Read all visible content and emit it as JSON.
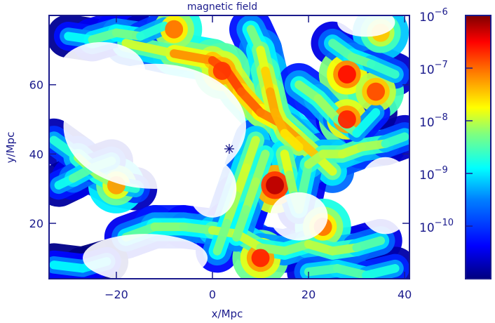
{
  "chart_data": {
    "type": "heatmap",
    "title": "magnetic field",
    "xlabel": "x/Mpc",
    "ylabel": "y/Mpc",
    "xlim": [
      -34,
      41
    ],
    "ylim": [
      4,
      80
    ],
    "x_ticks": [
      -20,
      0,
      20,
      40
    ],
    "y_ticks": [
      20,
      40,
      60
    ],
    "colorbar": {
      "scale": "log",
      "range": [
        1e-11,
        1e-06
      ],
      "tick_values": [
        1e-06,
        1e-07,
        1e-08,
        1e-09,
        1e-10
      ],
      "tick_labels": [
        {
          "base": "10",
          "exp": "−6"
        },
        {
          "base": "10",
          "exp": "−7"
        },
        {
          "base": "10",
          "exp": "−8"
        },
        {
          "base": "10",
          "exp": "−9"
        },
        {
          "base": "10",
          "exp": "−10"
        }
      ],
      "colormap": [
        "#00007f",
        "#0000ff",
        "#007fff",
        "#00ffff",
        "#7fff7f",
        "#ffff00",
        "#ff7f00",
        "#ff0000",
        "#7f0000"
      ]
    },
    "marker": {
      "symbol": "asterisk",
      "x": 3.5,
      "y": 41.5
    },
    "filaments": [
      {
        "x": [
          -18,
          -8,
          0,
          3,
          6,
          10,
          14,
          18,
          22,
          25
        ],
        "y": [
          72,
          69,
          67,
          64,
          58,
          52,
          49,
          44,
          39,
          35
        ],
        "log_b": [
          -8.6,
          -7.6,
          -7.1,
          -6.9,
          -7.0,
          -7.2,
          -7.3,
          -7.5,
          -7.7,
          -8.4
        ]
      },
      {
        "x": [
          8,
          10,
          11,
          12,
          13,
          15,
          18
        ],
        "y": [
          76,
          70,
          64,
          58,
          52,
          46,
          42
        ],
        "log_b": [
          -8.8,
          -8.2,
          -7.8,
          -7.5,
          -7.4,
          -7.6,
          -7.9
        ]
      },
      {
        "x": [
          -33,
          -28,
          -24,
          -20,
          -16
        ],
        "y": [
          44,
          39,
          34,
          31,
          30
        ],
        "log_b": [
          -9.4,
          -8.5,
          -8.2,
          -8.6,
          -9.2
        ]
      },
      {
        "x": [
          -32,
          -29,
          -25,
          -21
        ],
        "y": [
          31,
          33,
          36,
          38
        ],
        "log_b": [
          -9.3,
          -8.8,
          -8.6,
          -9.1
        ]
      },
      {
        "x": [
          -30,
          -25,
          -20,
          -15,
          -10
        ],
        "y": [
          74,
          73,
          75,
          74,
          77
        ],
        "log_b": [
          -9.3,
          -8.9,
          -8.4,
          -8.7,
          -9.2
        ]
      },
      {
        "x": [
          -18,
          -12,
          -6,
          0,
          5,
          10,
          15,
          20,
          25,
          30,
          35
        ],
        "y": [
          16,
          19,
          19,
          18,
          17,
          13,
          12,
          14,
          12,
          13,
          15
        ],
        "log_b": [
          -9.1,
          -8.2,
          -8.7,
          -8.4,
          -8.0,
          -8.2,
          -8.6,
          -8.3,
          -8.1,
          -8.5,
          -8.9
        ]
      },
      {
        "x": [
          9,
          7,
          5,
          3,
          1
        ],
        "y": [
          44,
          36,
          28,
          20,
          12
        ],
        "log_b": [
          -8.3,
          -8.0,
          -8.2,
          -8.4,
          -8.7
        ]
      },
      {
        "x": [
          11,
          9,
          7,
          5
        ],
        "y": [
          40,
          32,
          24,
          16
        ],
        "log_b": [
          -8.6,
          -8.2,
          -8.4,
          -8.6
        ]
      },
      {
        "x": [
          15,
          16,
          17,
          18,
          20,
          23,
          27,
          31,
          36,
          40
        ],
        "y": [
          40,
          34,
          28,
          24,
          37,
          40,
          40,
          42,
          43,
          45
        ],
        "log_b": [
          -7.8,
          -8.2,
          -8.5,
          -8.8,
          -8.5,
          -8.1,
          -8.3,
          -8.0,
          -8.6,
          -9.1
        ]
      },
      {
        "x": [
          18,
          22,
          26,
          30,
          34
        ],
        "y": [
          60,
          56,
          50,
          46,
          52
        ],
        "log_b": [
          -8.6,
          -8.3,
          -8.4,
          -8.9,
          -9.2
        ]
      },
      {
        "x": [
          25,
          29,
          33,
          38
        ],
        "y": [
          72,
          68,
          66,
          63
        ],
        "log_b": [
          -8.9,
          -8.5,
          -8.7,
          -9.0
        ]
      },
      {
        "x": [
          -33,
          -27,
          -22
        ],
        "y": [
          8,
          7,
          9
        ],
        "log_b": [
          -9.3,
          -9.0,
          -9.4
        ]
      },
      {
        "x": [
          20,
          26,
          32,
          38
        ],
        "y": [
          6,
          7,
          5,
          7
        ],
        "log_b": [
          -8.9,
          -8.6,
          -8.8,
          -9.2
        ]
      }
    ],
    "blobs": [
      {
        "x": 2,
        "y": 64,
        "log_b": -6.9
      },
      {
        "x": 13,
        "y": 31,
        "log_b": -6.3
      },
      {
        "x": 28,
        "y": 63,
        "log_b": -6.7
      },
      {
        "x": 28,
        "y": 50,
        "log_b": -6.8
      },
      {
        "x": 34,
        "y": 58,
        "log_b": -7.0
      },
      {
        "x": -20,
        "y": 31,
        "log_b": -7.4
      },
      {
        "x": -8,
        "y": 76,
        "log_b": -7.2
      },
      {
        "x": 10,
        "y": 10,
        "log_b": -6.8
      },
      {
        "x": 23,
        "y": 19,
        "log_b": -7.2
      },
      {
        "x": 35,
        "y": 75,
        "log_b": -7.6
      }
    ],
    "voids": [
      {
        "x": -12,
        "y": 48,
        "rx": 19,
        "ry": 13
      },
      {
        "x": -23,
        "y": 64,
        "rx": 9,
        "ry": 6
      },
      {
        "x": 0,
        "y": 30,
        "rx": 5,
        "ry": 6
      },
      {
        "x": 18,
        "y": 22,
        "rx": 6,
        "ry": 5
      },
      {
        "x": 36,
        "y": 28,
        "rx": 6,
        "ry": 8
      },
      {
        "x": -14,
        "y": 10,
        "rx": 13,
        "ry": 5
      },
      {
        "x": 32,
        "y": 78,
        "rx": 6,
        "ry": 3
      }
    ]
  }
}
